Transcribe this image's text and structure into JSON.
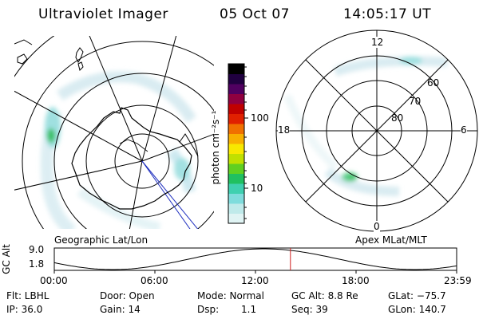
{
  "header": {
    "title": "Ultraviolet Imager",
    "date": "05 Oct 07",
    "time": "14:05:17 UT"
  },
  "left_map": {
    "label": "Geographic Lat/Lon"
  },
  "right_map": {
    "label": "Apex MLat/MLT",
    "mlt_labels": {
      "top": "12",
      "bottom": "0",
      "left": "18",
      "right": "6"
    },
    "lat_labels": [
      "60",
      "70",
      "80"
    ]
  },
  "colorbar": {
    "unit_label": "photon cm⁻²s⁻¹",
    "ticks": [
      "100",
      "10"
    ],
    "colors": [
      "#e0f4f4",
      "#bfeaea",
      "#7fdcdc",
      "#3fd0b0",
      "#20c060",
      "#60d020",
      "#c0e000",
      "#f8e800",
      "#f8b000",
      "#f07000",
      "#e02000",
      "#c00000",
      "#900040",
      "#500060",
      "#200040",
      "#000000"
    ]
  },
  "altitude_plot": {
    "axis_title": "GC Alt",
    "y_ticks": [
      "9.0",
      "1.8"
    ],
    "x_ticks": [
      "00:00",
      "06:00",
      "12:00",
      "18:00",
      "23:59"
    ],
    "current_time_hours": 14.088
  },
  "info": {
    "filter": "Flt: LBHL",
    "ip": "IP: 36.0",
    "door": "Door: Open",
    "gain": "Gain: 14",
    "mode": "Mode: Normal",
    "dsp_label": "Dsp:",
    "dsp_value": "1.1",
    "gc_alt": "GC Alt: 8.8 Re",
    "seq": "Seq: 39",
    "glat": "GLat: −75.7",
    "glon": "GLon: 140.7"
  }
}
